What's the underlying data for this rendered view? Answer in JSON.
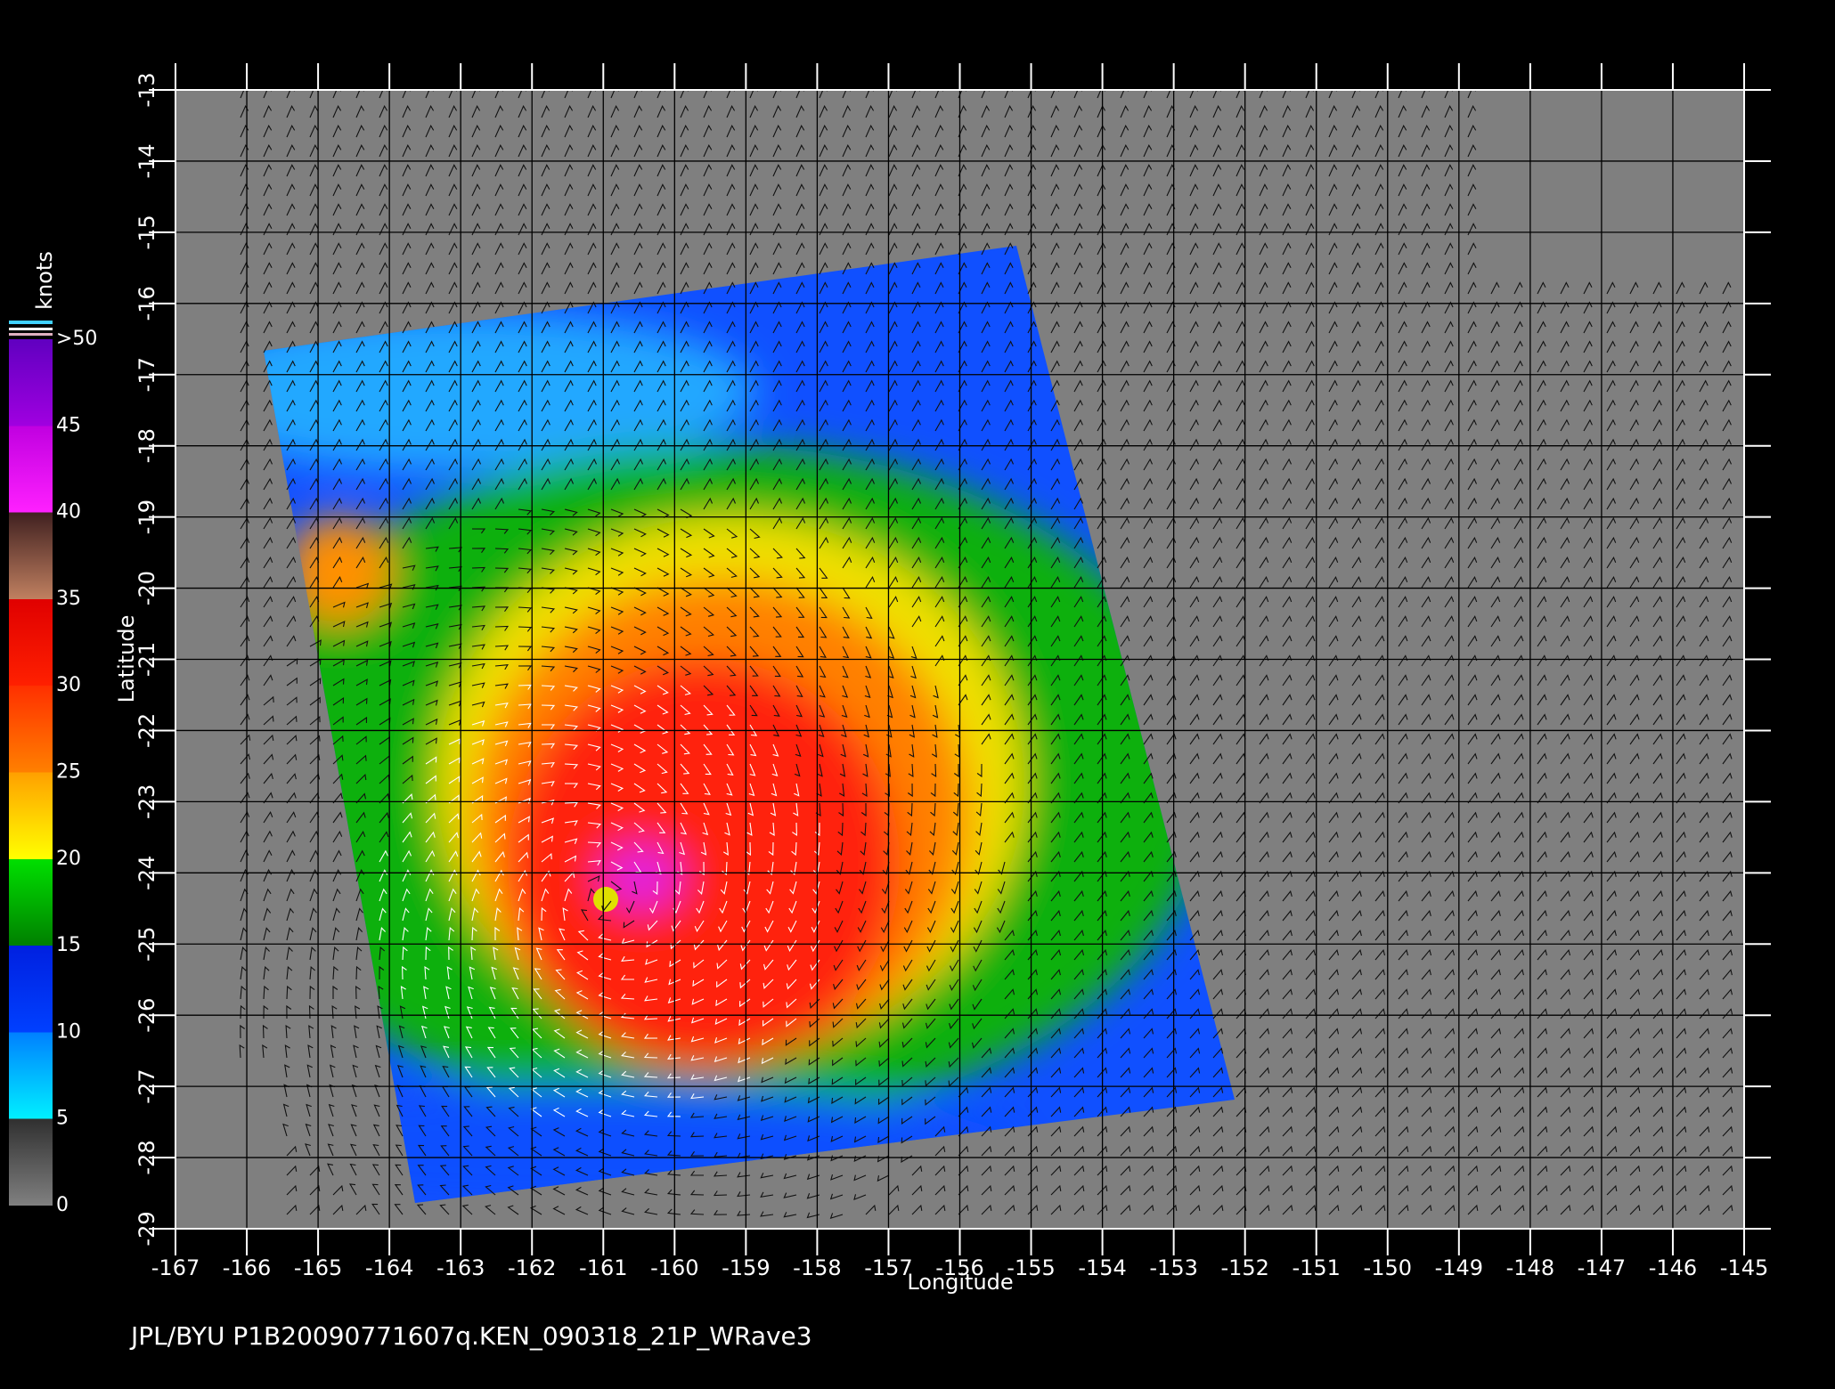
{
  "map": {
    "xlabel": "Longitude",
    "ylabel": "Latitude",
    "xlim": [
      -167,
      -145
    ],
    "ylim": [
      -29,
      -13
    ],
    "xticks": [
      -167,
      -166,
      -165,
      -164,
      -163,
      -162,
      -161,
      -160,
      -159,
      -158,
      -157,
      -156,
      -155,
      -154,
      -153,
      -152,
      -151,
      -150,
      -149,
      -148,
      -147,
      -146,
      -145
    ],
    "yticks": [
      -29,
      -28,
      -27,
      -26,
      -25,
      -24,
      -23,
      -22,
      -21,
      -20,
      -19,
      -18,
      -17,
      -16,
      -15,
      -14,
      -13
    ],
    "grid": true,
    "colorbar": {
      "label": "knots",
      "lim": [
        0,
        50
      ],
      "ticks": [
        0,
        5,
        10,
        15,
        20,
        25,
        30,
        35,
        40,
        45,
        {
          "value": 50,
          "label": ">50"
        }
      ]
    }
  },
  "footer": "JPL/BYU  P1B20090771607q.KEN_090318_21P_WRave3"
}
